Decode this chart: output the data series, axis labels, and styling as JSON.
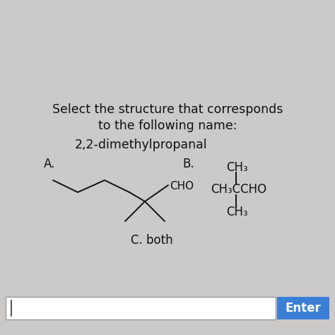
{
  "title_line1": "Select the structure that corresponds",
  "title_line2": "to the following name:",
  "compound_name": "2,2-dimethylpropanal",
  "label_A": "A.",
  "label_B": "B.",
  "label_C": "C. both",
  "struct_B_top": "CH₃",
  "struct_B_mid": "CH₃CCHO",
  "struct_B_bot": "CH₃",
  "cho_label": "CHO",
  "bg_color": "#cccac8",
  "text_color": "#111111",
  "enter_btn_color": "#3a7fd5",
  "enter_btn_text": "Enter",
  "title_fontsize": 12.5,
  "label_fontsize": 12,
  "struct_fontsize": 12,
  "cho_fontsize": 11
}
